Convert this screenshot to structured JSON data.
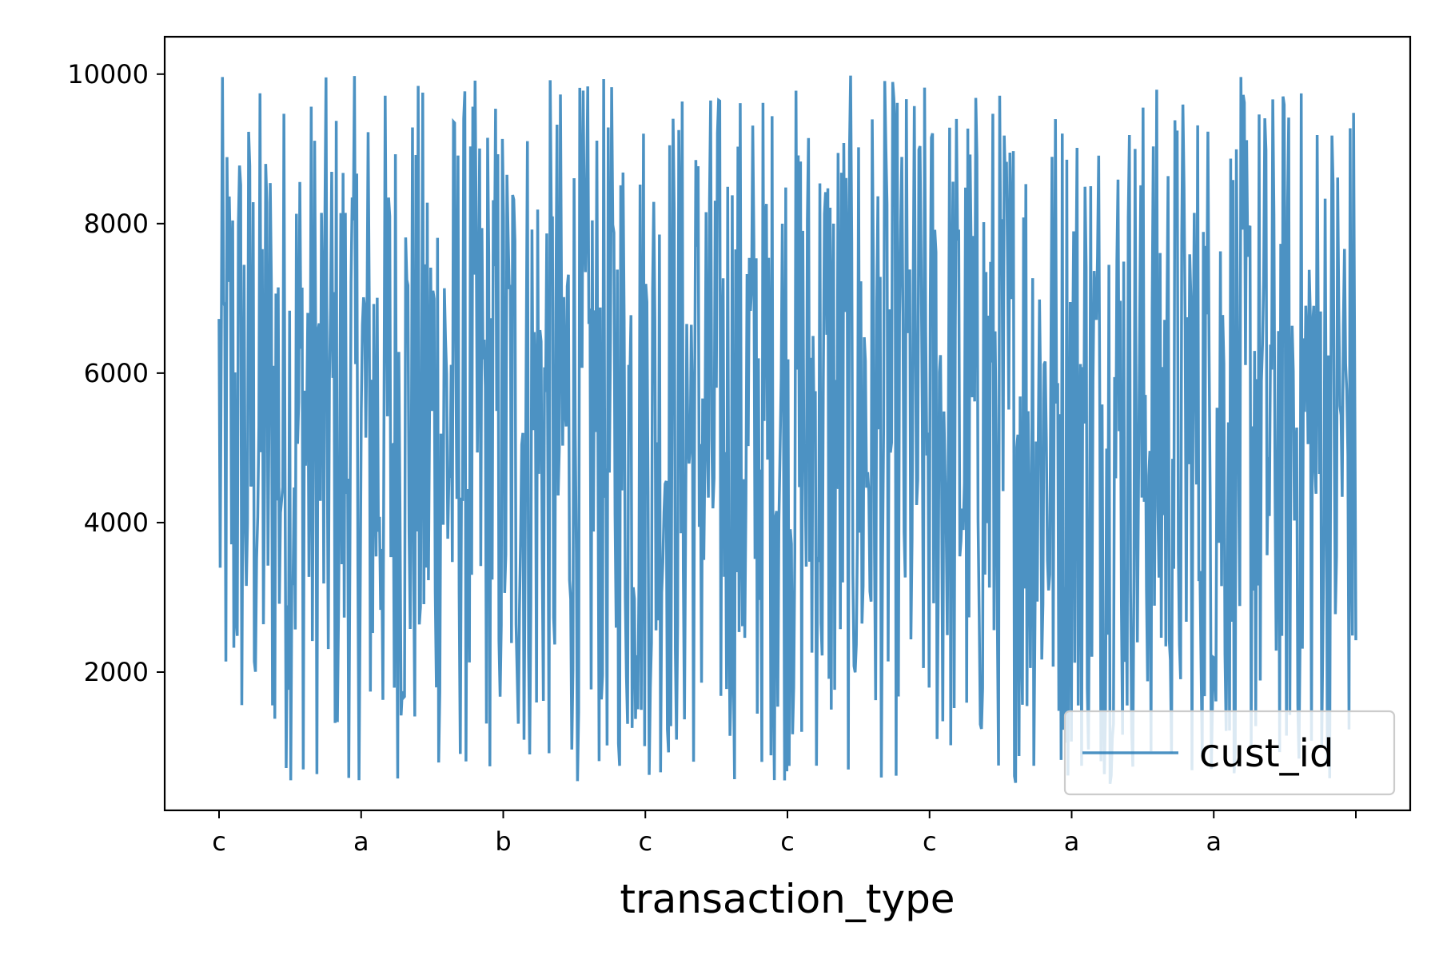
{
  "chart_data": {
    "type": "line",
    "title": "",
    "xlabel": "transaction_type",
    "ylabel": "",
    "x_tick_labels": [
      "c",
      "a",
      "b",
      "c",
      "c",
      "c",
      "a",
      "a",
      ""
    ],
    "y_ticks": [
      2000,
      4000,
      6000,
      8000,
      10000
    ],
    "ylim": [
      150,
      10500
    ],
    "n_points": 1000,
    "x_range": [
      0,
      999
    ],
    "grid": false,
    "legend_position": "lower right",
    "series": [
      {
        "name": "cust_id",
        "color": "#1f77b4",
        "opacity": 0.8,
        "value_range": [
          500,
          10000
        ],
        "values": []
      }
    ]
  }
}
